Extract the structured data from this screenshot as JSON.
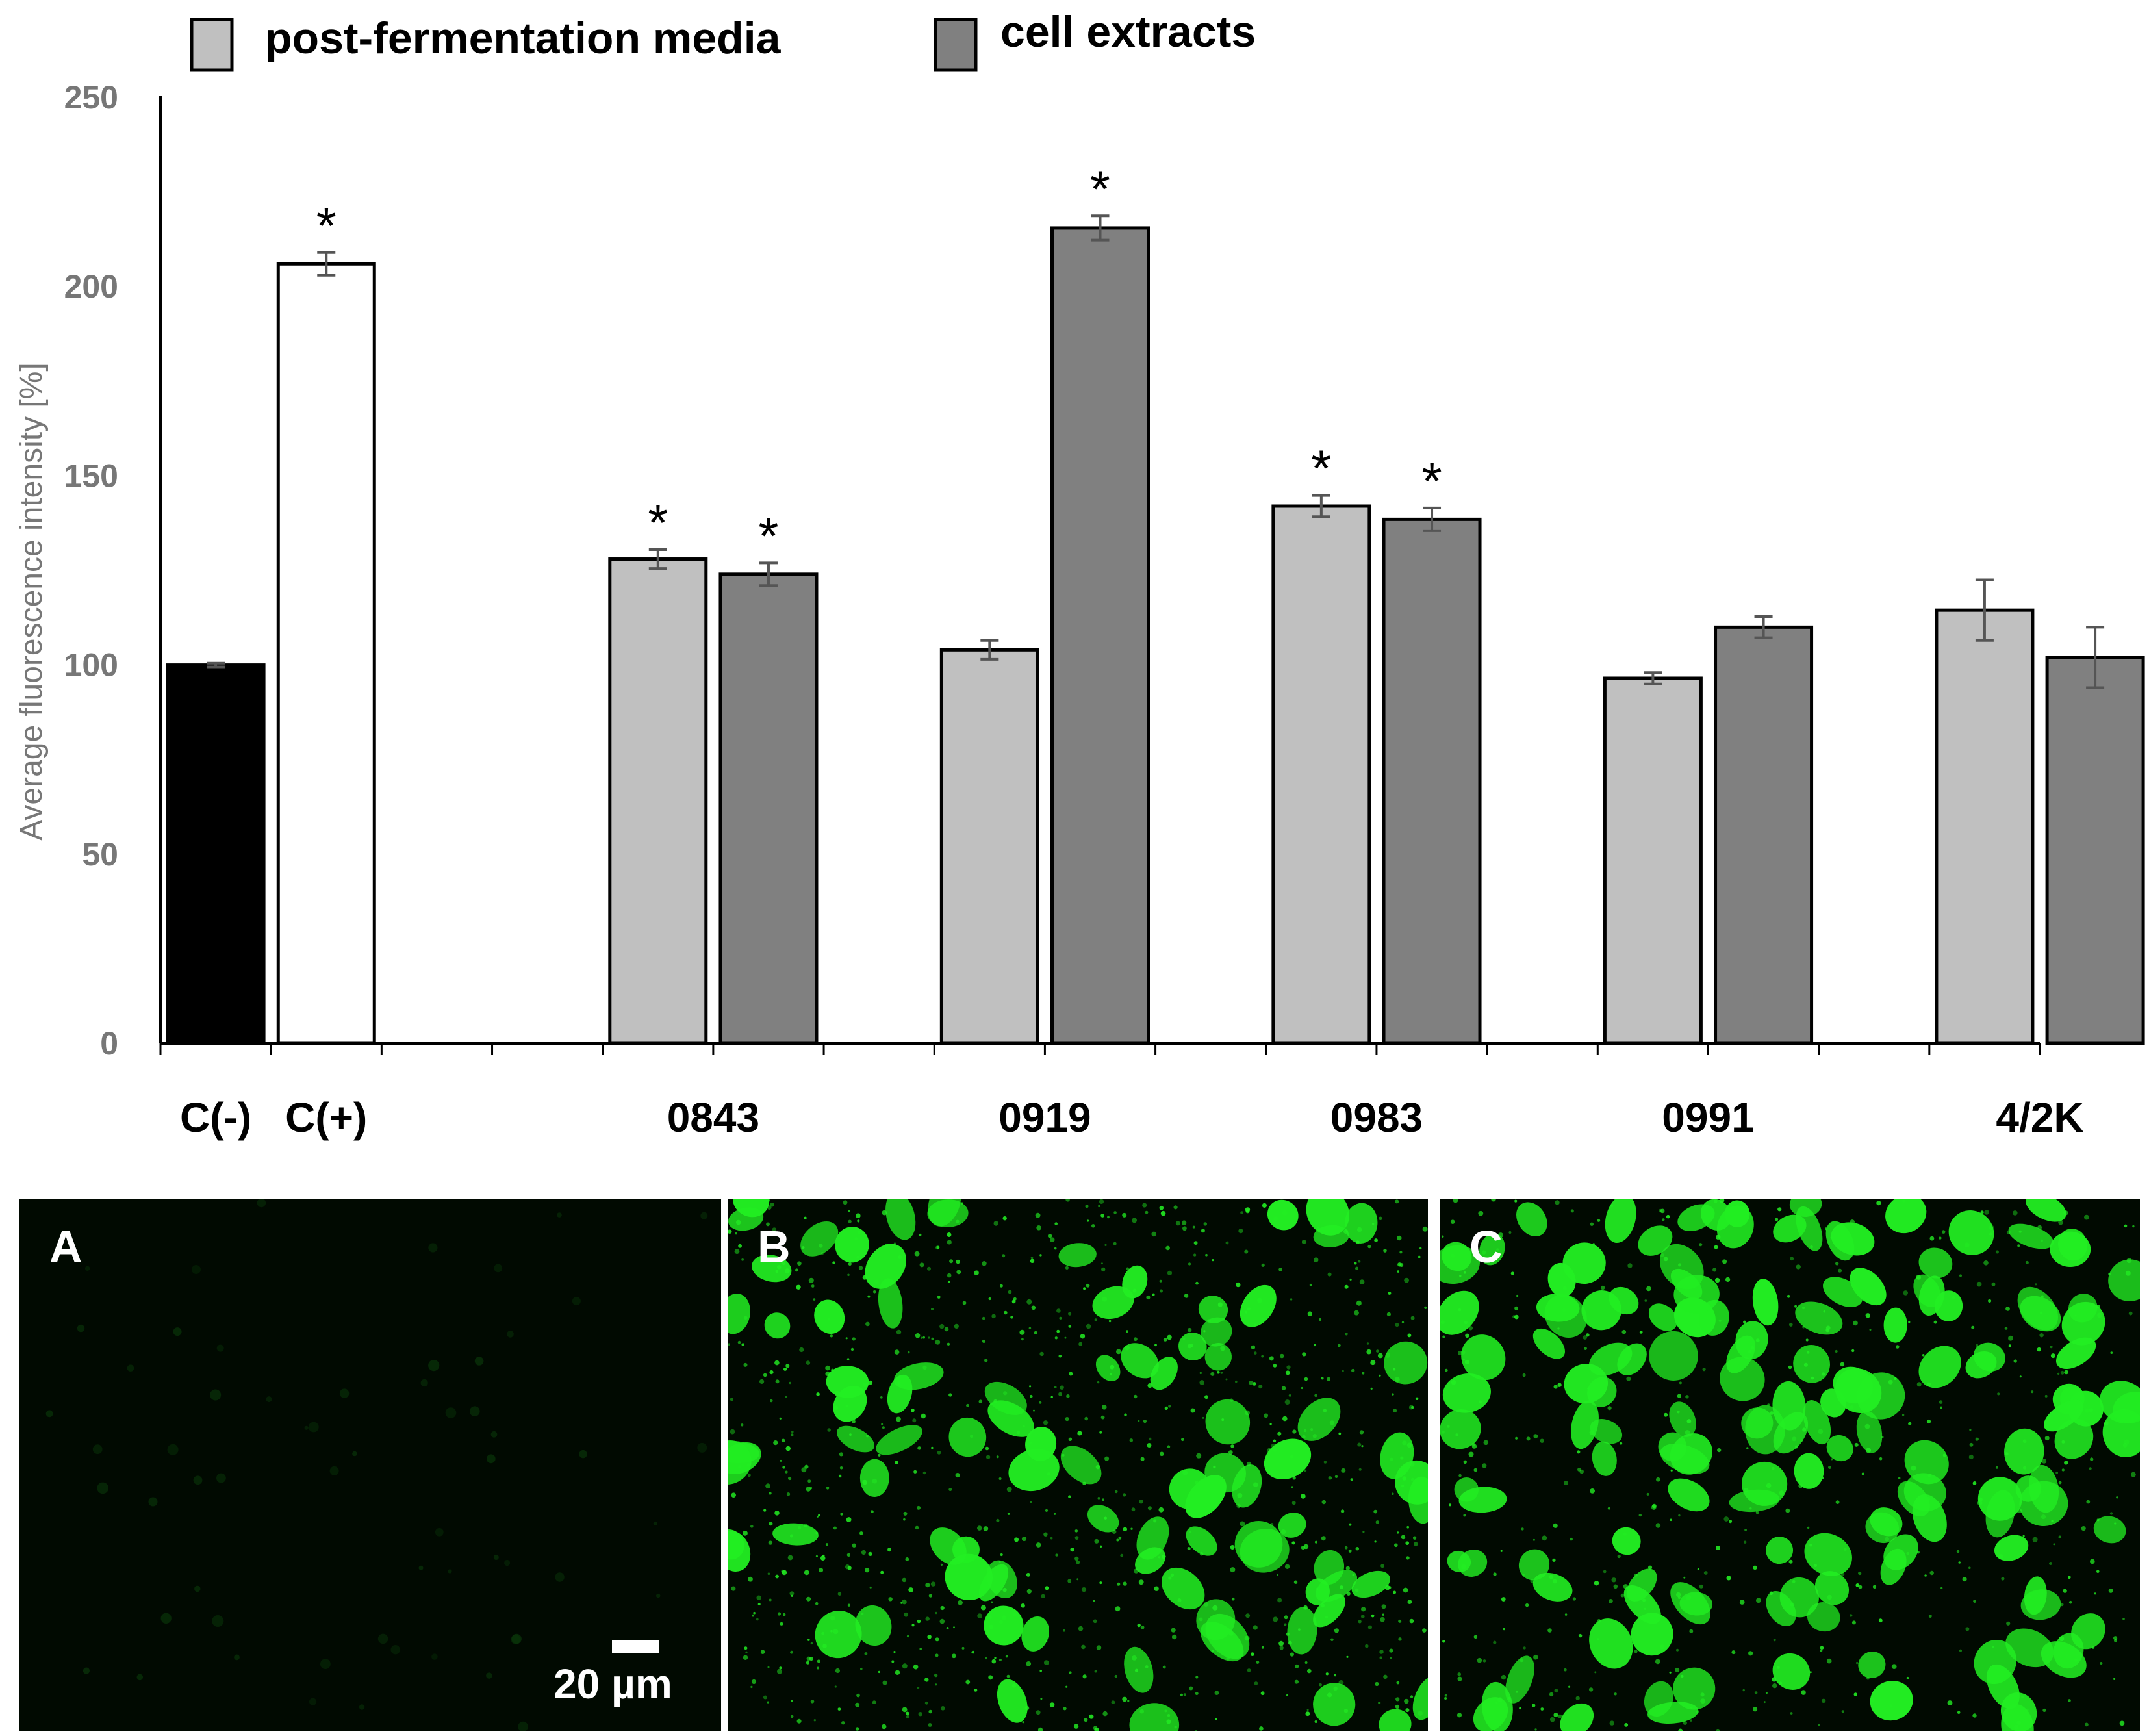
{
  "chart_data": {
    "type": "bar",
    "ylabel": "Average fluorescence intensity [%]",
    "xlabel": "",
    "ylim": [
      0,
      250
    ],
    "yticks": [
      0,
      50,
      100,
      150,
      200,
      250
    ],
    "legend_position": "top",
    "controls": [
      {
        "label": "C(-)",
        "value": 100,
        "error": 0.5,
        "color": "#000000",
        "significant": false
      },
      {
        "label": "C(+)",
        "value": 206,
        "error": 3,
        "color": "#ffffff",
        "significant": true
      }
    ],
    "categories": [
      "0843",
      "0919",
      "0983",
      "0991",
      "4/2K"
    ],
    "series": [
      {
        "name": "post-fermentation media",
        "color": "#c0c0c0",
        "values": [
          128,
          104,
          142,
          96.5,
          114.5
        ],
        "errors": [
          2.5,
          2.5,
          2.8,
          1.5,
          8
        ],
        "significant": [
          true,
          false,
          true,
          false,
          false
        ]
      },
      {
        "name": "cell extracts",
        "color": "#808080",
        "values": [
          124,
          215.5,
          138.5,
          110,
          102
        ],
        "errors": [
          3,
          3.2,
          3,
          2.8,
          8
        ],
        "significant": [
          true,
          true,
          true,
          false,
          false
        ]
      }
    ],
    "significance_marker": "*"
  },
  "panels": [
    {
      "letter": "A",
      "description": "low fluorescence"
    },
    {
      "letter": "B",
      "description": "green fluorescent cells"
    },
    {
      "letter": "C",
      "description": "dense green fluorescent cells"
    }
  ],
  "scale_bar_label": "20 µm",
  "colors": {
    "fluorescence": "#22ee22",
    "panel_background": "#010a01"
  }
}
